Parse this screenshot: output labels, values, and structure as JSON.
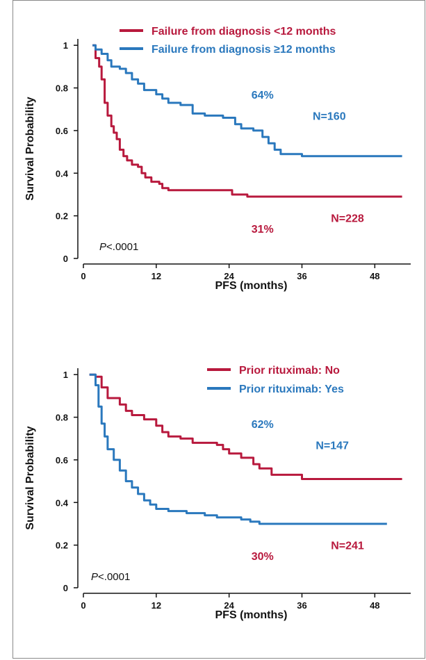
{
  "colors": {
    "red": "#b8193d",
    "blue": "#2a78bd",
    "axis": "#111111",
    "frame": "#888888"
  },
  "chart_data": [
    {
      "type": "line",
      "xlabel": "PFS (months)",
      "ylabel": "Survival Probability",
      "xlim": [
        0,
        53
      ],
      "ylim": [
        0,
        1.03
      ],
      "xticks": [
        "0",
        "12",
        "24",
        "36",
        "48"
      ],
      "yticks": [
        "0",
        "0.2",
        "0.4",
        "0.6",
        "0.8",
        "1"
      ],
      "pvalue_prefix": "P",
      "pvalue_rest": "<.0001",
      "series": [
        {
          "name": "Failure from diagnosis <12 months",
          "color": "#b8193d",
          "points": [
            [
              1.5,
              1.0
            ],
            [
              2.0,
              0.94
            ],
            [
              2.6,
              0.9
            ],
            [
              3.0,
              0.84
            ],
            [
              3.5,
              0.73
            ],
            [
              4.0,
              0.67
            ],
            [
              4.6,
              0.62
            ],
            [
              5.0,
              0.59
            ],
            [
              5.5,
              0.56
            ],
            [
              6.0,
              0.51
            ],
            [
              6.6,
              0.48
            ],
            [
              7.2,
              0.46
            ],
            [
              8.0,
              0.44
            ],
            [
              9.0,
              0.43
            ],
            [
              9.6,
              0.4
            ],
            [
              10.2,
              0.38
            ],
            [
              11.2,
              0.36
            ],
            [
              12.5,
              0.35
            ],
            [
              13.0,
              0.33
            ],
            [
              14.0,
              0.32
            ],
            [
              20.0,
              0.32
            ],
            [
              24.5,
              0.3
            ],
            [
              27.0,
              0.29
            ],
            [
              52.5,
              0.29
            ]
          ]
        },
        {
          "name": "Failure from diagnosis ≥12 months",
          "color": "#2a78bd",
          "points": [
            [
              1.5,
              1.0
            ],
            [
              2.0,
              0.98
            ],
            [
              3.0,
              0.96
            ],
            [
              4.0,
              0.93
            ],
            [
              4.6,
              0.9
            ],
            [
              6.0,
              0.89
            ],
            [
              7.0,
              0.87
            ],
            [
              8.0,
              0.84
            ],
            [
              9.0,
              0.82
            ],
            [
              10.0,
              0.79
            ],
            [
              12.0,
              0.77
            ],
            [
              13.0,
              0.75
            ],
            [
              14.0,
              0.73
            ],
            [
              16.0,
              0.72
            ],
            [
              18.0,
              0.68
            ],
            [
              20.0,
              0.67
            ],
            [
              23.0,
              0.66
            ],
            [
              25.0,
              0.63
            ],
            [
              26.0,
              0.61
            ],
            [
              28.0,
              0.6
            ],
            [
              29.5,
              0.57
            ],
            [
              30.5,
              0.54
            ],
            [
              31.5,
              0.51
            ],
            [
              32.5,
              0.49
            ],
            [
              36.0,
              0.48
            ],
            [
              52.5,
              0.48
            ]
          ]
        }
      ],
      "annotations": [
        {
          "text": "64%",
          "x": 29.5,
          "y": 0.77,
          "color": "#2a78bd"
        },
        {
          "text": "N=160",
          "x": 40.5,
          "y": 0.67,
          "color": "#2a78bd"
        },
        {
          "text": "31%",
          "x": 29.5,
          "y": 0.14,
          "color": "#b8193d"
        },
        {
          "text": "N=228",
          "x": 43.5,
          "y": 0.19,
          "color": "#b8193d"
        }
      ]
    },
    {
      "type": "line",
      "xlabel": "PFS (months)",
      "ylabel": "Survival Probability",
      "xlim": [
        0,
        53
      ],
      "ylim": [
        0,
        1.03
      ],
      "xticks": [
        "0",
        "12",
        "24",
        "36",
        "48"
      ],
      "yticks": [
        "0",
        "0.2",
        "0.4",
        "0.6",
        "0.8",
        "1"
      ],
      "pvalue_prefix": "P",
      "pvalue_rest": "<.0001",
      "series": [
        {
          "name": "Prior rituximab: No",
          "color": "#b8193d",
          "points": [
            [
              1.0,
              1.0
            ],
            [
              2.0,
              0.99
            ],
            [
              3.0,
              0.94
            ],
            [
              4.0,
              0.89
            ],
            [
              6.0,
              0.86
            ],
            [
              7.0,
              0.83
            ],
            [
              8.0,
              0.81
            ],
            [
              10.0,
              0.79
            ],
            [
              12.0,
              0.76
            ],
            [
              13.0,
              0.73
            ],
            [
              14.0,
              0.71
            ],
            [
              16.0,
              0.7
            ],
            [
              18.0,
              0.68
            ],
            [
              22.0,
              0.67
            ],
            [
              23.0,
              0.65
            ],
            [
              24.0,
              0.63
            ],
            [
              26.0,
              0.61
            ],
            [
              28.0,
              0.58
            ],
            [
              29.0,
              0.56
            ],
            [
              31.0,
              0.53
            ],
            [
              36.0,
              0.51
            ],
            [
              52.5,
              0.51
            ]
          ]
        },
        {
          "name": "Prior rituximab: Yes",
          "color": "#2a78bd",
          "points": [
            [
              1.0,
              1.0
            ],
            [
              2.0,
              0.95
            ],
            [
              2.5,
              0.85
            ],
            [
              3.0,
              0.77
            ],
            [
              3.5,
              0.71
            ],
            [
              4.0,
              0.65
            ],
            [
              5.0,
              0.6
            ],
            [
              6.0,
              0.55
            ],
            [
              7.0,
              0.5
            ],
            [
              8.0,
              0.47
            ],
            [
              9.0,
              0.44
            ],
            [
              10.0,
              0.41
            ],
            [
              11.0,
              0.39
            ],
            [
              12.0,
              0.37
            ],
            [
              14.0,
              0.36
            ],
            [
              17.0,
              0.35
            ],
            [
              20.0,
              0.34
            ],
            [
              22.0,
              0.33
            ],
            [
              26.0,
              0.32
            ],
            [
              27.5,
              0.31
            ],
            [
              29.0,
              0.3
            ],
            [
              50.0,
              0.3
            ]
          ]
        }
      ],
      "annotations": [
        {
          "text": "62%",
          "x": 29.5,
          "y": 0.77,
          "color": "#2a78bd"
        },
        {
          "text": "N=147",
          "x": 41.0,
          "y": 0.67,
          "color": "#2a78bd"
        },
        {
          "text": "30%",
          "x": 29.5,
          "y": 0.15,
          "color": "#b8193d"
        },
        {
          "text": "N=241",
          "x": 43.5,
          "y": 0.2,
          "color": "#b8193d"
        }
      ]
    }
  ]
}
